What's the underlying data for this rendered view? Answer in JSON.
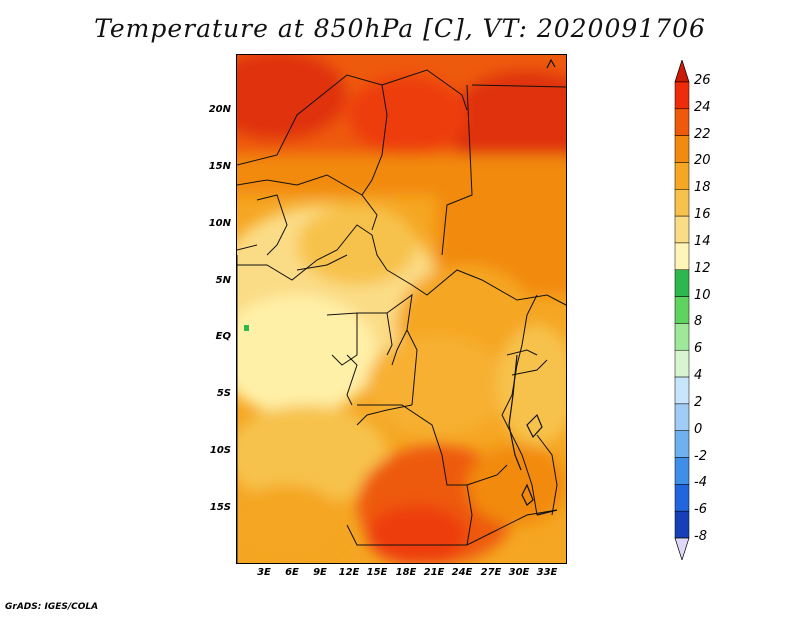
{
  "title": "Temperature at 850hPa [C], VT: 2020091706",
  "footer": "GrADS: IGES/COLA",
  "map": {
    "lat_labels": [
      "20N",
      "15N",
      "10N",
      "5N",
      "EQ",
      "5S",
      "10S",
      "15S"
    ],
    "lon_labels": [
      "3E",
      "6E",
      "9E",
      "12E",
      "15E",
      "18E",
      "21E",
      "24E",
      "27E",
      "30E",
      "33E"
    ],
    "field": "temperature",
    "units": "C",
    "level": "850hPa",
    "valid_time": "2020091706"
  },
  "colorbar": {
    "labels": [
      "26",
      "24",
      "22",
      "20",
      "18",
      "16",
      "14",
      "12",
      "10",
      "8",
      "6",
      "4",
      "2",
      "0",
      "-2",
      "-4",
      "-6",
      "-8"
    ],
    "colors": [
      "#ee2c0a",
      "#ee5a0a",
      "#f28a10",
      "#f5a623",
      "#f7c24b",
      "#fbdc86",
      "#fff5b8",
      "#2db84d",
      "#5fd35f",
      "#9ee89a",
      "#d6f5d0",
      "#c8e6fb",
      "#9fcdf5",
      "#6fb0ef",
      "#3f8ee8",
      "#2266dd",
      "#1540b8",
      "#0a1a80",
      "#00085a"
    ],
    "top_arrow_color": "#cc1a0a",
    "bottom_arrow_color": "#e0d8f8"
  }
}
